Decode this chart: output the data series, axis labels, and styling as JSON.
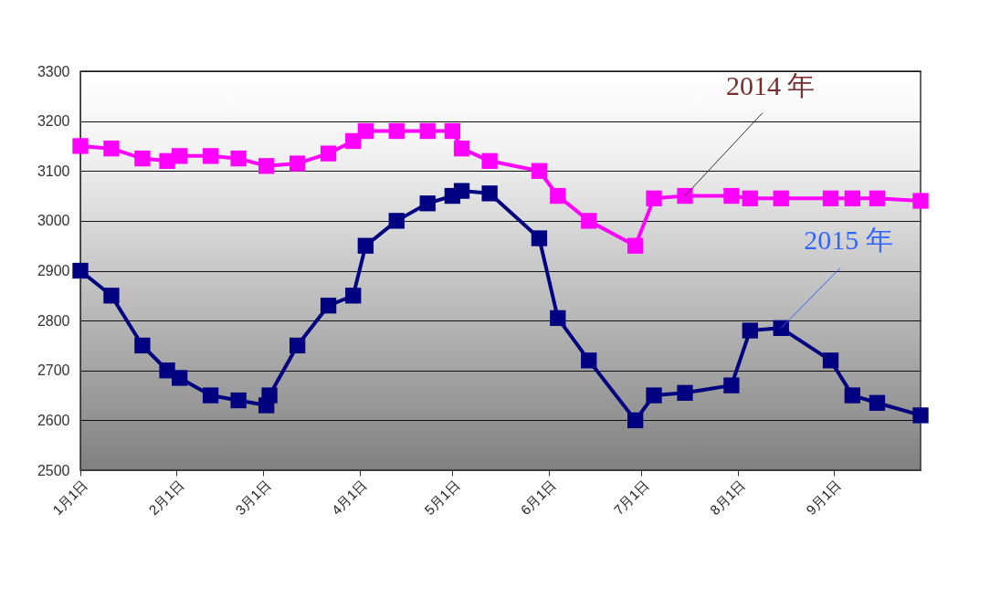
{
  "chart_data": {
    "type": "line",
    "marker": "square",
    "grid": "y",
    "x": [
      "--01-01",
      "--01-11",
      "--01-21",
      "--01-29",
      "--02-02",
      "--02-12",
      "--02-21",
      "--03-02",
      "--03-03",
      "--03-12",
      "--03-22",
      "--03-30",
      "--04-03",
      "--04-13",
      "--04-23",
      "--05-01",
      "--05-04",
      "--05-13",
      "--05-29",
      "--06-04",
      "--06-14",
      "--06-29",
      "--07-05",
      "--07-15",
      "--07-30",
      "--08-05",
      "--08-15",
      "--08-31",
      "--09-07",
      "--09-15",
      "--09-29"
    ],
    "xlim": [
      "--01-01",
      "--09-29"
    ],
    "xticks": [
      {
        "value": "--01-01",
        "label": "1月1日"
      },
      {
        "value": "--02-01",
        "label": "2月1日"
      },
      {
        "value": "--03-01",
        "label": "3月1日"
      },
      {
        "value": "--04-01",
        "label": "4月1日"
      },
      {
        "value": "--05-01",
        "label": "5月1日"
      },
      {
        "value": "--06-01",
        "label": "6月1日"
      },
      {
        "value": "--07-01",
        "label": "7月1日"
      },
      {
        "value": "--08-01",
        "label": "8月1日"
      },
      {
        "value": "--09-01",
        "label": "9月1日"
      }
    ],
    "ylim": [
      2500,
      3300
    ],
    "yticks": [
      2500,
      2600,
      2700,
      2800,
      2900,
      3000,
      3100,
      3200,
      3300
    ],
    "series": [
      {
        "name": "2014 年",
        "color": "#ff00ff",
        "x": [
          "--01-01",
          "--01-11",
          "--01-21",
          "--01-29",
          "--02-02",
          "--02-12",
          "--02-21",
          "--03-02",
          "--03-12",
          "--03-22",
          "--03-30",
          "--04-03",
          "--04-13",
          "--04-23",
          "--05-01",
          "--05-04",
          "--05-13",
          "--05-29",
          "--06-04",
          "--06-14",
          "--06-29",
          "--07-05",
          "--07-15",
          "--07-30",
          "--08-05",
          "--08-15",
          "--08-31",
          "--09-07",
          "--09-15",
          "--09-29"
        ],
        "values": [
          3150,
          3145,
          3125,
          3120,
          3130,
          3130,
          3125,
          3110,
          3115,
          3135,
          3160,
          3180,
          3180,
          3180,
          3180,
          3145,
          3120,
          3100,
          3050,
          3000,
          2950,
          3045,
          3050,
          3050,
          3045,
          3045,
          3045,
          3045,
          3045,
          3040
        ]
      },
      {
        "name": "2015 年",
        "color": "#000080",
        "values": [
          2900,
          2850,
          2750,
          2700,
          2685,
          2650,
          2640,
          2630,
          2650,
          2750,
          2830,
          2850,
          2950,
          3000,
          3035,
          3050,
          3060,
          3055,
          2965,
          2805,
          2720,
          2600,
          2650,
          2655,
          2670,
          2780,
          2785,
          2720,
          2650,
          2635,
          2610
        ]
      }
    ]
  }
}
